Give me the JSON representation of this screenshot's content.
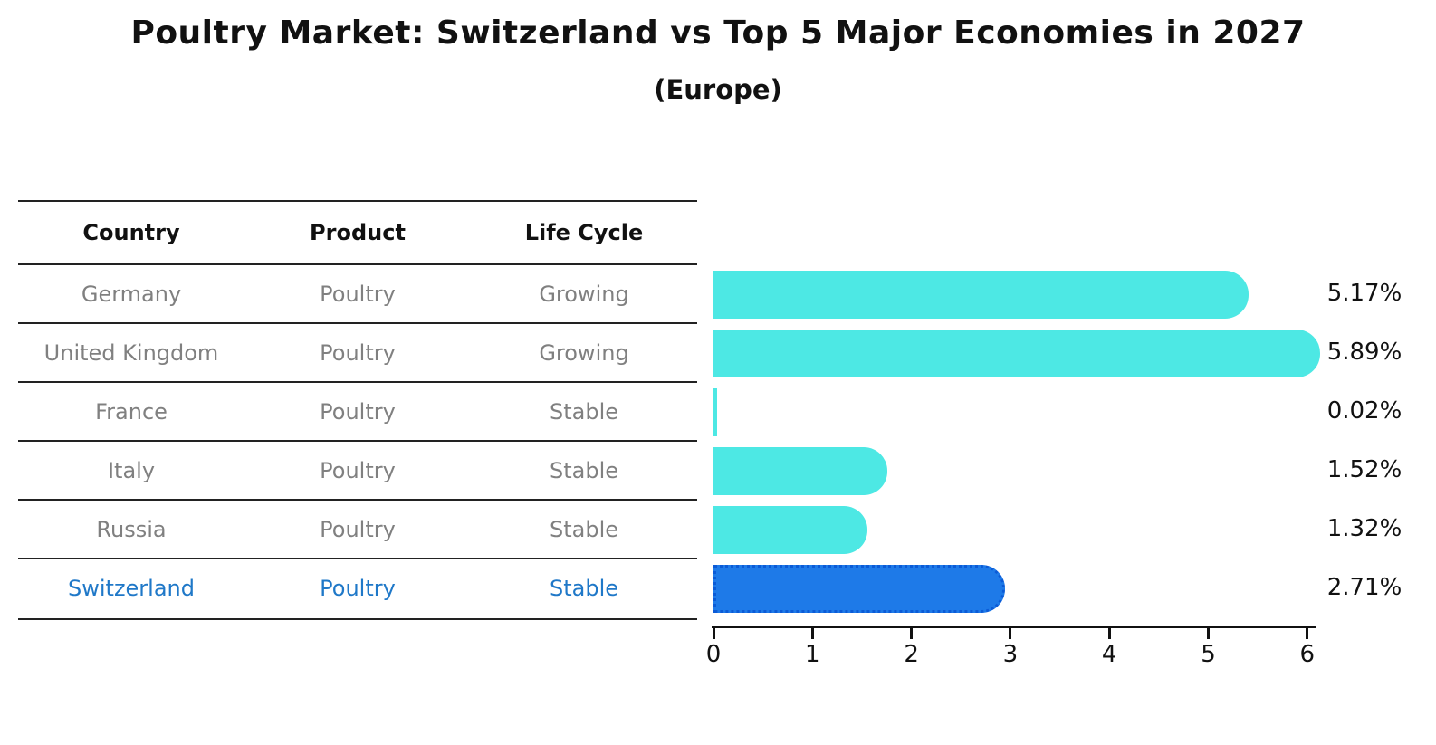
{
  "title": "Poultry Market: Switzerland vs Top 5 Major Economies in 2027",
  "subtitle": "(Europe)",
  "table": {
    "headers": [
      "Country",
      "Product",
      "Life Cycle"
    ],
    "rows": [
      {
        "country": "Germany",
        "product": "Poultry",
        "life_cycle": "Growing",
        "highlighted": false
      },
      {
        "country": "United Kingdom",
        "product": "Poultry",
        "life_cycle": "Growing",
        "highlighted": false
      },
      {
        "country": "France",
        "product": "Poultry",
        "life_cycle": "Stable",
        "highlighted": false
      },
      {
        "country": "Italy",
        "product": "Poultry",
        "life_cycle": "Stable",
        "highlighted": false
      },
      {
        "country": "Russia",
        "product": "Poultry",
        "life_cycle": "Stable",
        "highlighted": false
      },
      {
        "country": "Switzerland",
        "product": "Poultry",
        "life_cycle": "Stable",
        "highlighted": true
      }
    ]
  },
  "chart_data": {
    "type": "bar",
    "orientation": "horizontal",
    "title": "Poultry Market: Switzerland vs Top 5 Major Economies in 2027 (Europe)",
    "categories": [
      "Germany",
      "United Kingdom",
      "France",
      "Italy",
      "Russia",
      "Switzerland"
    ],
    "values": [
      5.17,
      5.89,
      0.02,
      1.52,
      1.32,
      2.71
    ],
    "value_labels": [
      "5.17%",
      "5.89%",
      "0.02%",
      "1.52%",
      "1.32%",
      "2.71%"
    ],
    "highlight_category": "Switzerland",
    "x_ticks": [
      "0",
      "1",
      "2",
      "3",
      "4",
      "5",
      "6"
    ],
    "xlim": [
      0,
      6.1
    ],
    "grid": false,
    "legend": "none",
    "colors": {
      "bar": "#4DE8E4",
      "highlight_bar": "#1E7AE8",
      "highlight_border": "#0B5BD7",
      "highlight_text": "#1F78C8",
      "cell_text": "#808080",
      "header_text": "#111111",
      "axis": "#111111"
    }
  }
}
